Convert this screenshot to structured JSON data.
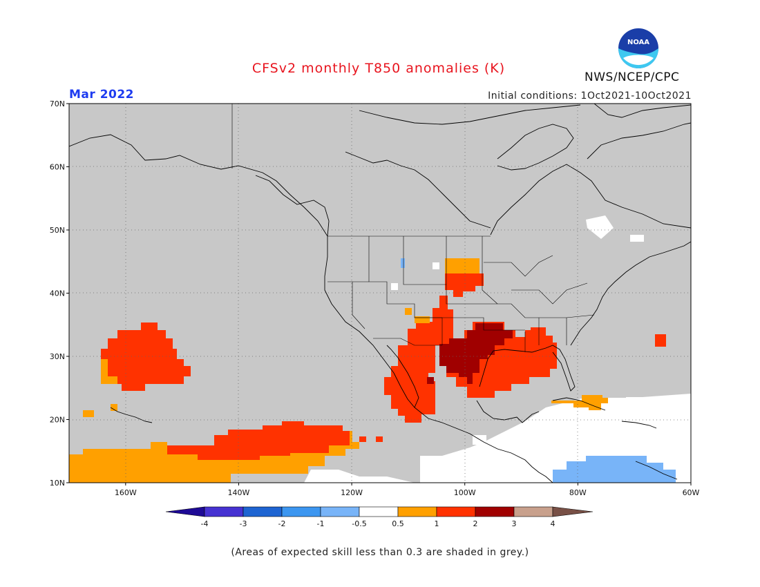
{
  "title": "CFSv2 monthly T850 anomalies (K)",
  "forecast_month": "Mar 2022",
  "initial_conditions": "Initial conditions: 1Oct2021-10Oct2021",
  "agency": "NWS/NCEP/CPC",
  "logo": {
    "text": "NOAA",
    "icon": "noaa-logo-icon"
  },
  "footnote": "(Areas of expected skill less than 0.3 are shaded in grey.)",
  "map": {
    "lon_range": [
      -170,
      -60
    ],
    "lat_range": [
      10,
      70
    ],
    "lon_ticks": [
      {
        "value": -160,
        "label": "160W"
      },
      {
        "value": -140,
        "label": "140W"
      },
      {
        "value": -120,
        "label": "120W"
      },
      {
        "value": -100,
        "label": "100W"
      },
      {
        "value": -80,
        "label": "80W"
      },
      {
        "value": -60,
        "label": "60W"
      }
    ],
    "lat_ticks": [
      {
        "value": 10,
        "label": "10N"
      },
      {
        "value": 20,
        "label": "20N"
      },
      {
        "value": 30,
        "label": "30N"
      },
      {
        "value": 40,
        "label": "40N"
      },
      {
        "value": 50,
        "label": "50N"
      },
      {
        "value": 60,
        "label": "60N"
      },
      {
        "value": 70,
        "label": "70N"
      }
    ],
    "grid": "dotted",
    "low_skill_color": "#c8c8c8"
  },
  "colorbar": {
    "labels": [
      "-4",
      "-3",
      "-2",
      "-1",
      "-0.5",
      "0.5",
      "1",
      "2",
      "3",
      "4"
    ],
    "colors": [
      "#1e0a96",
      "#4632d2",
      "#1e64d2",
      "#3c96f0",
      "#78b4f8",
      "#ffffff",
      "#ffa000",
      "#ff3200",
      "#a00000",
      "#c8a08c",
      "#785046"
    ]
  },
  "chart_data": {
    "type": "heatmap",
    "variable": "T850 anomaly (K)",
    "regions": [
      {
        "lon": [
          -160,
          -151
        ],
        "lat": [
          25,
          35
        ],
        "class": "1 to 2"
      },
      {
        "lon": [
          -164,
          -163
        ],
        "lat": [
          24,
          29
        ],
        "class": "0.5 to 1"
      },
      {
        "lon": [
          -150,
          -115
        ],
        "lat": [
          14,
          19
        ],
        "class": "1 to 2"
      },
      {
        "lon": [
          -170,
          -132
        ],
        "lat": [
          10,
          15
        ],
        "class": "0.5 to 1"
      },
      {
        "lon": [
          -112,
          -104
        ],
        "lat": [
          20,
          32
        ],
        "class": "1 to 2"
      },
      {
        "lon": [
          -110,
          -85
        ],
        "lat": [
          24,
          34
        ],
        "class": "1 to 2"
      },
      {
        "lon": [
          -101,
          -94
        ],
        "lat": [
          26,
          34
        ],
        "class": "2 to 3"
      },
      {
        "lon": [
          -104,
          -97
        ],
        "lat": [
          41,
          46
        ],
        "class": "1 to 2"
      },
      {
        "lon": [
          -104,
          -98
        ],
        "lat": [
          43,
          46
        ],
        "class": "0.5 to 1"
      },
      {
        "lon": [
          -87,
          -75
        ],
        "lat": [
          20,
          23
        ],
        "class": "0.5 to 1"
      },
      {
        "lon": [
          -85,
          -70
        ],
        "lat": [
          10,
          13
        ],
        "class": "-1 to -0.5"
      },
      {
        "lon": [
          -65,
          -64
        ],
        "lat": [
          30,
          32
        ],
        "class": "1 to 2"
      }
    ]
  }
}
